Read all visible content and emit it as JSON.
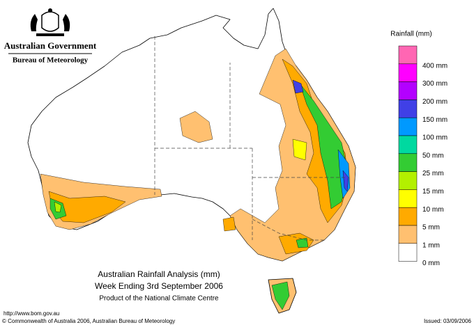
{
  "header": {
    "government": "Australian Government",
    "agency": "Bureau of Meteorology"
  },
  "legend": {
    "title": "Rainfall (mm)",
    "top_color": "#ff66b3",
    "items": [
      {
        "label": "400 mm",
        "color": "#ff00ff"
      },
      {
        "label": "300 mm",
        "color": "#b300ff"
      },
      {
        "label": "200 mm",
        "color": "#4040e6"
      },
      {
        "label": "150 mm",
        "color": "#0099ff"
      },
      {
        "label": "100 mm",
        "color": "#00d9a0"
      },
      {
        "label": "50 mm",
        "color": "#33cc33"
      },
      {
        "label": "25 mm",
        "color": "#b3f000"
      },
      {
        "label": "15 mm",
        "color": "#ffff00"
      },
      {
        "label": "10 mm",
        "color": "#ffaa00"
      },
      {
        "label": "5 mm",
        "color": "#ffc070"
      },
      {
        "label": "1 mm",
        "color": "#ffffff"
      },
      {
        "label": "0 mm",
        "color": null
      }
    ]
  },
  "title": {
    "line1": "Australian Rainfall Analysis (mm)",
    "line2": "Week Ending 3rd September 2006",
    "line3": "Product of the National Climate Centre"
  },
  "footer": {
    "url": "http://www.bom.gov.au",
    "copyright": "© Commonwealth of Australia 2006, Australian Bureau of Meteorology",
    "issued": "Issued: 03/09/2006"
  }
}
